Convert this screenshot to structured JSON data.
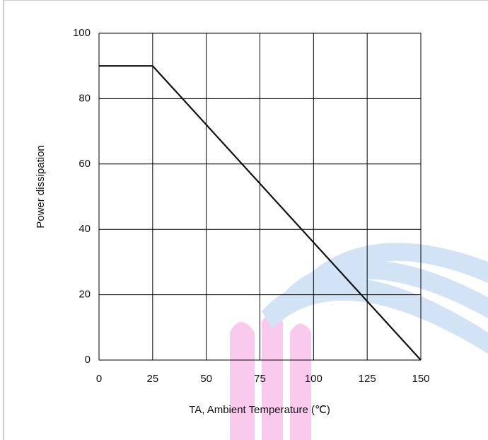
{
  "chart_data": {
    "type": "line",
    "x_label": "TA, Ambient Temperature (℃)",
    "y_label": "Power dissipation",
    "x": [
      0,
      25,
      150
    ],
    "series": [
      {
        "color": "#111111",
        "values": [
          90,
          90,
          0
        ]
      }
    ],
    "xlim": [
      0,
      150
    ],
    "xticks": [
      0,
      25,
      50,
      75,
      100,
      125,
      150
    ],
    "ylim": [
      0,
      100
    ],
    "yticks": [
      0,
      20,
      40,
      60,
      80,
      100
    ],
    "grid": true
  }
}
